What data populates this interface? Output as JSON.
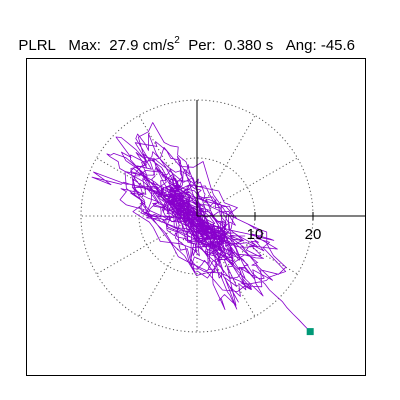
{
  "header": {
    "component": "PLRL",
    "max_label": "Max:",
    "max_value": "27.9",
    "max_unit_base": "cm/s",
    "max_unit_exp": "2",
    "period_label": "Per:",
    "period_value": "0.380 s",
    "angle_label": "Ang:",
    "angle_value": "-45.6"
  },
  "chart_data": {
    "type": "polar-orbit",
    "title": "",
    "radial_ring_labels": [
      "10",
      "20"
    ],
    "radial_rings": [
      10,
      20
    ],
    "radial_max": 20,
    "spoke_step_deg": 30,
    "peak_angle_deg": -45.6,
    "peak_magnitude": 27.9,
    "trace_color": "#8800cc",
    "marker_color": "#009977",
    "axis_color": "#000000",
    "grid_color": "#555555"
  }
}
